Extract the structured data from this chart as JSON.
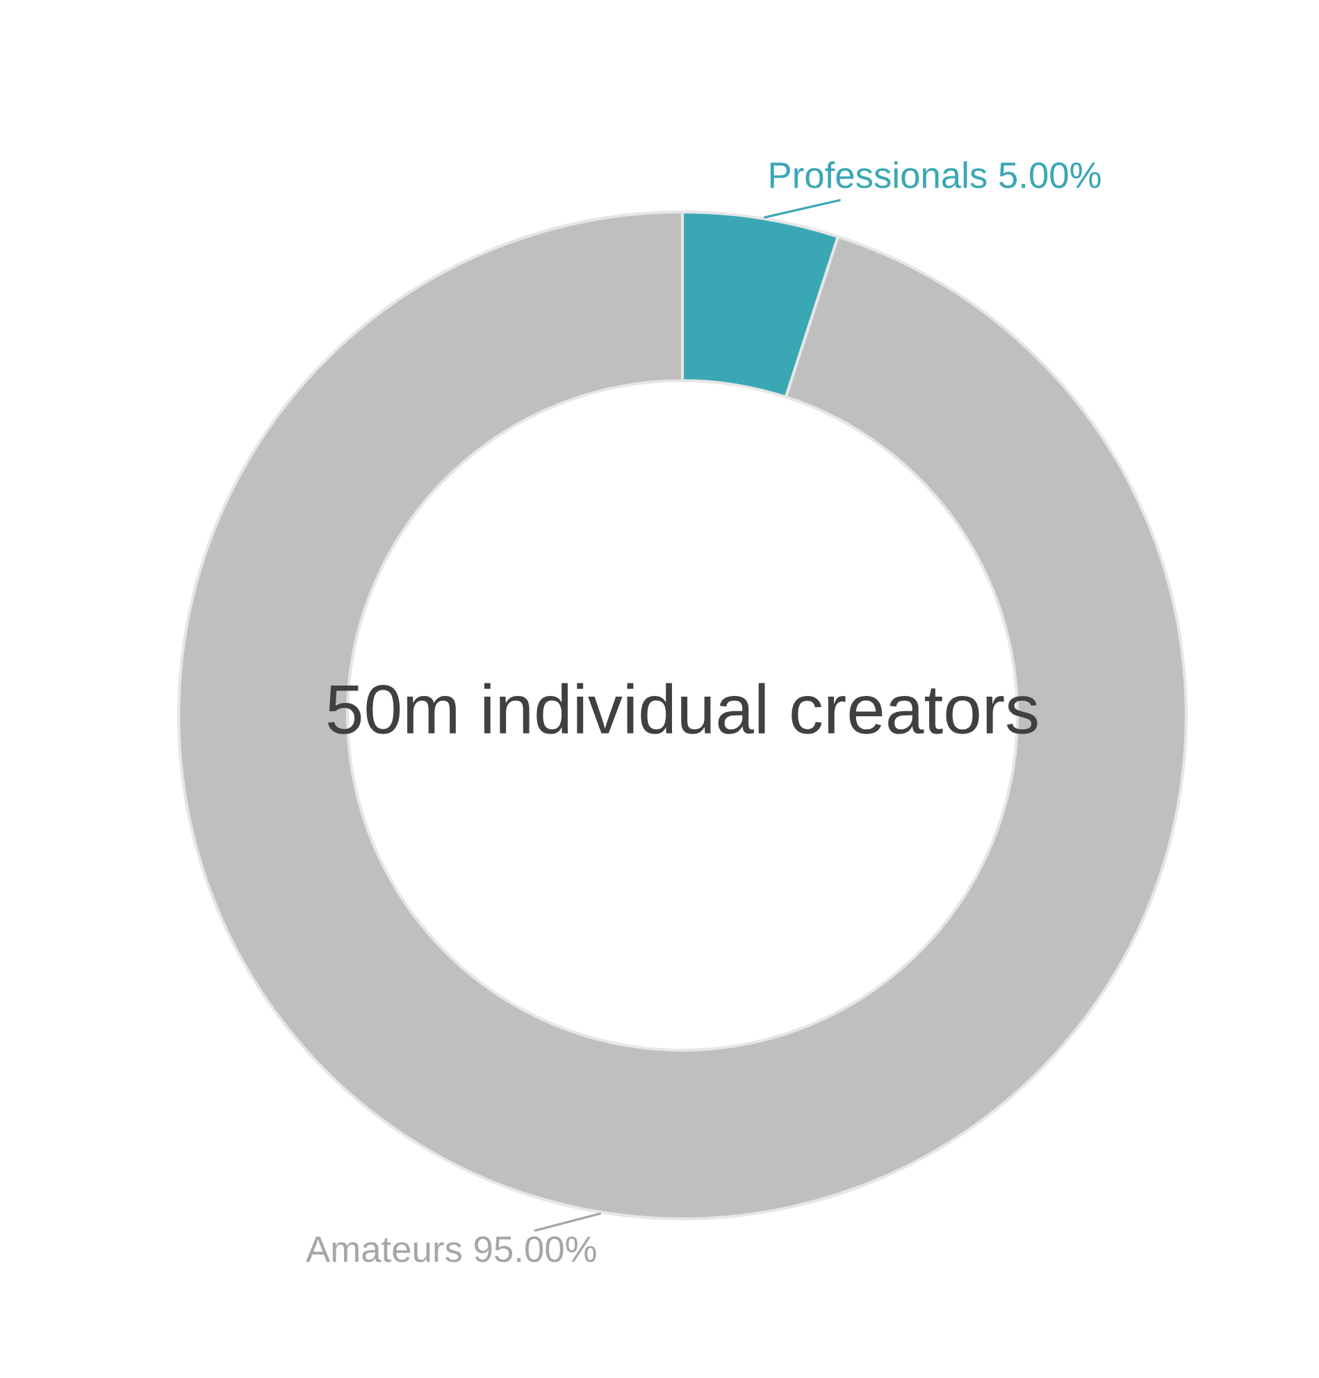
{
  "chart_data": {
    "type": "donut",
    "categories": [
      "Professionals",
      "Amateurs"
    ],
    "values": [
      5,
      95
    ],
    "colors": [
      "#3aa7b5",
      "#bfbfbf"
    ],
    "value_labels": [
      "5.00%",
      "95.00%"
    ],
    "annotations": [
      "50m individual creators"
    ]
  }
}
